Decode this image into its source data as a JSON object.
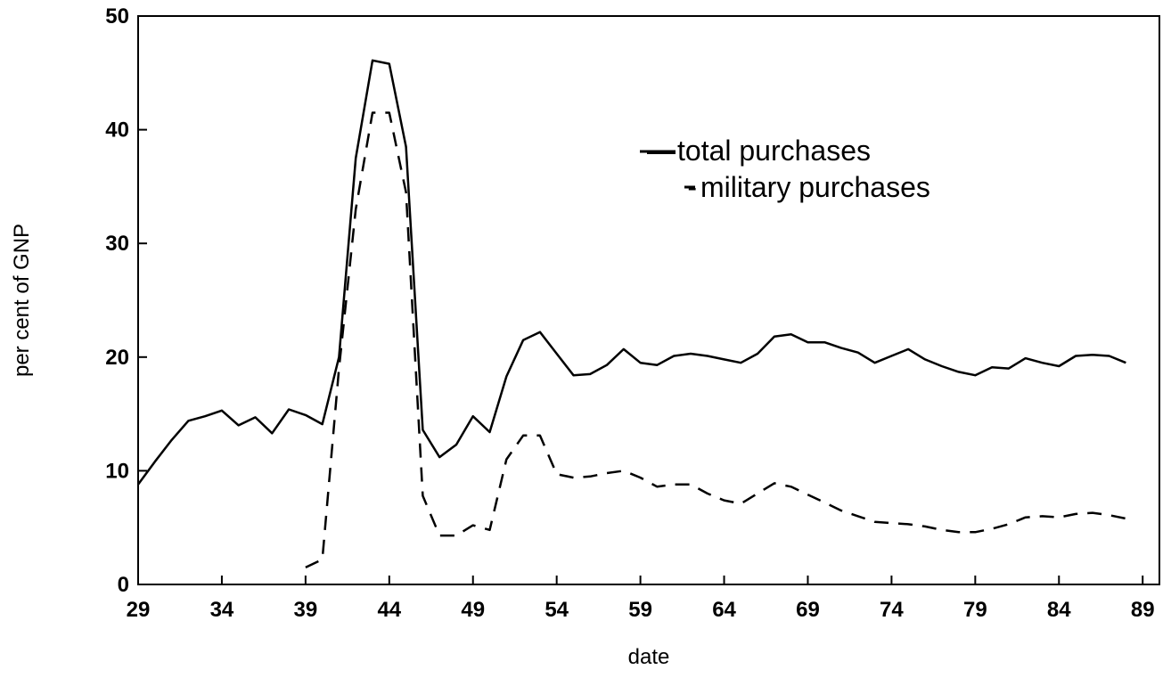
{
  "chart_data": {
    "type": "line",
    "title": "",
    "xlabel": "date",
    "ylabel": "per cent of GNP",
    "xlim": [
      29,
      90
    ],
    "ylim": [
      0,
      50
    ],
    "x_ticks": [
      29,
      34,
      39,
      44,
      49,
      54,
      59,
      64,
      69,
      74,
      79,
      84,
      89
    ],
    "y_ticks": [
      0,
      10,
      20,
      30,
      40,
      50
    ],
    "grid": false,
    "legend_position": "top-right",
    "legend_markers": [
      "—",
      "-"
    ],
    "series": [
      {
        "name": "total purchases",
        "style": "solid",
        "color": "#000000",
        "x": [
          29,
          30,
          31,
          32,
          33,
          34,
          35,
          36,
          37,
          38,
          39,
          40,
          41,
          42,
          43,
          44,
          45,
          46,
          47,
          48,
          49,
          50,
          51,
          52,
          53,
          54,
          55,
          56,
          57,
          58,
          59,
          60,
          61,
          62,
          63,
          64,
          65,
          66,
          67,
          68,
          69,
          70,
          71,
          72,
          73,
          74,
          75,
          76,
          77,
          78,
          79,
          80,
          81,
          82,
          83,
          84,
          85,
          86,
          87,
          88
        ],
        "values": [
          8.8,
          10.8,
          12.7,
          14.4,
          14.8,
          15.3,
          14.0,
          14.7,
          13.3,
          15.4,
          14.9,
          14.1,
          20.0,
          37.5,
          46.1,
          45.8,
          38.5,
          13.6,
          11.2,
          12.3,
          14.8,
          13.4,
          18.3,
          21.5,
          22.2,
          20.3,
          18.4,
          18.5,
          19.3,
          20.7,
          19.5,
          19.3,
          20.1,
          20.3,
          20.1,
          19.8,
          19.5,
          20.3,
          21.8,
          22.0,
          21.3,
          21.3,
          20.8,
          20.4,
          19.5,
          20.1,
          20.7,
          19.8,
          19.2,
          18.7,
          18.4,
          19.1,
          19.0,
          19.9,
          19.5,
          19.2,
          20.1,
          20.2,
          20.1,
          19.5
        ]
      },
      {
        "name": "military purchases",
        "style": "dashed",
        "color": "#000000",
        "x": [
          39,
          40,
          41,
          42,
          43,
          44,
          45,
          46,
          47,
          48,
          49,
          50,
          51,
          52,
          53,
          54,
          55,
          56,
          57,
          58,
          59,
          60,
          61,
          62,
          63,
          64,
          65,
          66,
          67,
          68,
          69,
          70,
          71,
          72,
          73,
          74,
          75,
          76,
          77,
          78,
          79,
          80,
          81,
          82,
          83,
          84,
          85,
          86,
          87,
          88
        ],
        "values": [
          1.5,
          2.2,
          19.0,
          33.0,
          41.5,
          41.5,
          34.5,
          7.8,
          4.3,
          4.3,
          5.2,
          4.8,
          11.0,
          13.1,
          13.1,
          9.7,
          9.4,
          9.5,
          9.8,
          10.0,
          9.4,
          8.6,
          8.8,
          8.8,
          8.0,
          7.4,
          7.1,
          8.0,
          8.9,
          8.6,
          7.9,
          7.2,
          6.5,
          6.0,
          5.5,
          5.4,
          5.3,
          5.1,
          4.8,
          4.6,
          4.6,
          4.9,
          5.3,
          5.9,
          6.0,
          5.9,
          6.2,
          6.3,
          6.1,
          5.8
        ]
      }
    ]
  }
}
